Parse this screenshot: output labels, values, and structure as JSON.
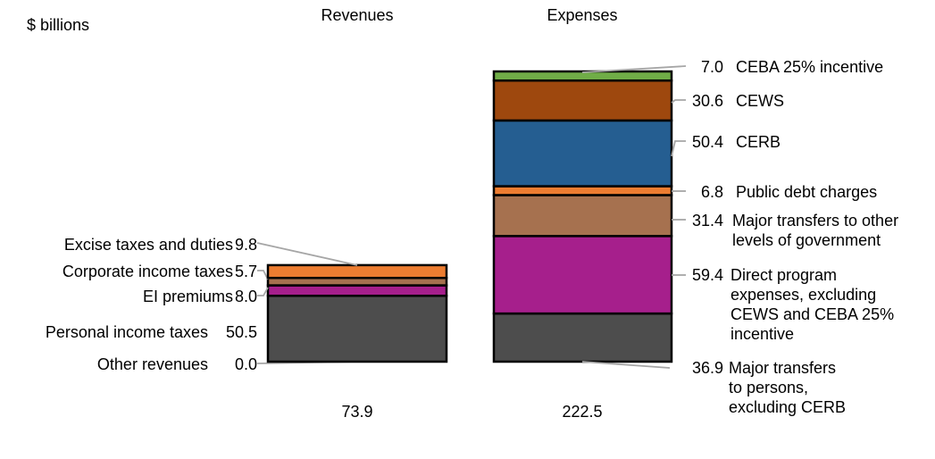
{
  "chart_data": {
    "type": "bar",
    "stacked": true,
    "ylabel": "$ billions",
    "categories": [
      "Revenues",
      "Expenses"
    ],
    "totals": [
      "73.9",
      "222.5"
    ],
    "series": [
      {
        "bar": "Revenues",
        "segments": [
          {
            "name": "Other revenues",
            "value": 0.0,
            "label": "0.0",
            "color": "#4d4d4d"
          },
          {
            "name": "Personal income taxes",
            "value": 50.5,
            "label": "50.5",
            "color": "#4d4d4d"
          },
          {
            "name": "EI premiums",
            "value": 8.0,
            "label": "8.0",
            "color": "#a61f8c"
          },
          {
            "name": "Corporate income taxes",
            "value": 5.7,
            "label": "5.7",
            "color": "#a6714f"
          },
          {
            "name": "Excise taxes and duties",
            "value": 9.8,
            "label": "9.8",
            "color": "#ed7d31"
          }
        ]
      },
      {
        "bar": "Expenses",
        "segments": [
          {
            "name": [
              "Major transfers",
              "to persons,",
              "excluding CERB"
            ],
            "value": 36.9,
            "label": "36.9",
            "color": "#4d4d4d"
          },
          {
            "name": [
              "Direct program",
              "expenses, excluding",
              "CEWS and CEBA 25%",
              "incentive"
            ],
            "value": 59.4,
            "label": "59.4",
            "color": "#a61f8c"
          },
          {
            "name": [
              "Major transfers to other",
              "levels of government"
            ],
            "value": 31.4,
            "label": "31.4",
            "color": "#a6714f"
          },
          {
            "name": [
              "Public debt charges"
            ],
            "value": 6.8,
            "label": "6.8",
            "color": "#ed7d31"
          },
          {
            "name": [
              "CERB"
            ],
            "value": 50.4,
            "label": "50.4",
            "color": "#255e91"
          },
          {
            "name": [
              "CEWS"
            ],
            "value": 30.6,
            "label": "30.6",
            "color": "#9e480e"
          },
          {
            "name": [
              "CEBA 25% incentive"
            ],
            "value": 7.0,
            "label": "7.0",
            "color": "#70ad47"
          }
        ]
      }
    ]
  }
}
